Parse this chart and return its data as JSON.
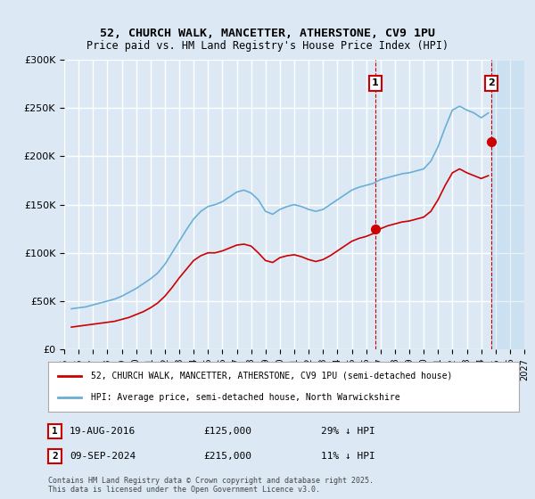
{
  "title": "52, CHURCH WALK, MANCETTER, ATHERSTONE, CV9 1PU",
  "subtitle": "Price paid vs. HM Land Registry's House Price Index (HPI)",
  "ylabel": "",
  "background_color": "#dce9f5",
  "plot_bg_color": "#dce9f5",
  "grid_color": "#ffffff",
  "legend1_label": "52, CHURCH WALK, MANCETTER, ATHERSTONE, CV9 1PU (semi-detached house)",
  "legend2_label": "HPI: Average price, semi-detached house, North Warwickshire",
  "footnote": "Contains HM Land Registry data © Crown copyright and database right 2025.\nThis data is licensed under the Open Government Licence v3.0.",
  "point1_label": "1",
  "point1_date": "19-AUG-2016",
  "point1_value": "£125,000",
  "point1_hpi": "29% ↓ HPI",
  "point1_year": 2016.63,
  "point1_price": 125000,
  "point2_label": "2",
  "point2_date": "09-SEP-2024",
  "point2_value": "£215,000",
  "point2_hpi": "11% ↓ HPI",
  "point2_year": 2024.69,
  "point2_price": 215000,
  "hpi_color": "#6aaed6",
  "price_color": "#cc0000",
  "marker_color": "#cc0000",
  "vline_color": "#cc0000",
  "ylim": [
    0,
    300000
  ],
  "xlim_start": 1995,
  "xlim_end": 2027,
  "hpi_data": {
    "years": [
      1995.5,
      1996.0,
      1996.5,
      1997.0,
      1997.5,
      1998.0,
      1998.5,
      1999.0,
      1999.5,
      2000.0,
      2000.5,
      2001.0,
      2001.5,
      2002.0,
      2002.5,
      2003.0,
      2003.5,
      2004.0,
      2004.5,
      2005.0,
      2005.5,
      2006.0,
      2006.5,
      2007.0,
      2007.5,
      2008.0,
      2008.5,
      2009.0,
      2009.5,
      2010.0,
      2010.5,
      2011.0,
      2011.5,
      2012.0,
      2012.5,
      2013.0,
      2013.5,
      2014.0,
      2014.5,
      2015.0,
      2015.5,
      2016.0,
      2016.5,
      2017.0,
      2017.5,
      2018.0,
      2018.5,
      2019.0,
      2019.5,
      2020.0,
      2020.5,
      2021.0,
      2021.5,
      2022.0,
      2022.5,
      2023.0,
      2023.5,
      2024.0,
      2024.5
    ],
    "values": [
      42000,
      43000,
      44000,
      46000,
      48000,
      50000,
      52000,
      55000,
      59000,
      63000,
      68000,
      73000,
      79000,
      88000,
      100000,
      112000,
      124000,
      135000,
      143000,
      148000,
      150000,
      153000,
      158000,
      163000,
      165000,
      162000,
      155000,
      143000,
      140000,
      145000,
      148000,
      150000,
      148000,
      145000,
      143000,
      145000,
      150000,
      155000,
      160000,
      165000,
      168000,
      170000,
      172000,
      176000,
      178000,
      180000,
      182000,
      183000,
      185000,
      187000,
      195000,
      210000,
      230000,
      248000,
      252000,
      248000,
      245000,
      240000,
      245000
    ]
  },
  "price_data": {
    "years": [
      1995.5,
      1996.0,
      1996.5,
      1997.0,
      1997.5,
      1998.0,
      1998.5,
      1999.0,
      1999.5,
      2000.0,
      2000.5,
      2001.0,
      2001.5,
      2002.0,
      2002.5,
      2003.0,
      2003.5,
      2004.0,
      2004.5,
      2005.0,
      2005.5,
      2006.0,
      2006.5,
      2007.0,
      2007.5,
      2008.0,
      2008.5,
      2009.0,
      2009.5,
      2010.0,
      2010.5,
      2011.0,
      2011.5,
      2012.0,
      2012.5,
      2013.0,
      2013.5,
      2014.0,
      2014.5,
      2015.0,
      2015.5,
      2016.0,
      2016.5,
      2017.0,
      2017.5,
      2018.0,
      2018.5,
      2019.0,
      2019.5,
      2020.0,
      2020.5,
      2021.0,
      2021.5,
      2022.0,
      2022.5,
      2023.0,
      2023.5,
      2024.0,
      2024.5
    ],
    "values": [
      23000,
      24000,
      25000,
      26000,
      27000,
      28000,
      29000,
      31000,
      33000,
      36000,
      39000,
      43000,
      48000,
      55000,
      64000,
      74000,
      83000,
      92000,
      97000,
      100000,
      100000,
      102000,
      105000,
      108000,
      109000,
      107000,
      100000,
      92000,
      90000,
      95000,
      97000,
      98000,
      96000,
      93000,
      91000,
      93000,
      97000,
      102000,
      107000,
      112000,
      115000,
      117000,
      120000,
      125000,
      128000,
      130000,
      132000,
      133000,
      135000,
      137000,
      143000,
      155000,
      170000,
      183000,
      187000,
      183000,
      180000,
      177000,
      180000
    ]
  },
  "xtick_years": [
    1995,
    1996,
    1997,
    1998,
    1999,
    2000,
    2001,
    2002,
    2003,
    2004,
    2005,
    2006,
    2007,
    2008,
    2009,
    2010,
    2011,
    2012,
    2013,
    2014,
    2015,
    2016,
    2017,
    2018,
    2019,
    2020,
    2021,
    2022,
    2023,
    2024,
    2025,
    2026,
    2027
  ]
}
